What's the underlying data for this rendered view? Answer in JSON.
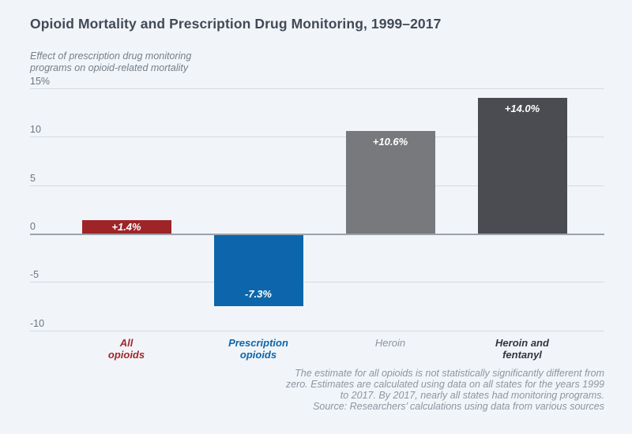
{
  "title": "Opioid Mortality and Prescription Drug Monitoring, 1999–2017",
  "subtitle": {
    "line1": "Effect of prescription drug monitoring",
    "line2": "programs on opioid-related mortality"
  },
  "chart_data": {
    "type": "bar",
    "title": "Opioid Mortality and Prescription Drug Monitoring, 1999–2017",
    "subtitle": "Effect of prescription drug monitoring programs on opioid-related mortality",
    "categories": [
      "All opioids",
      "Prescription opioids",
      "Heroin",
      "Heroin and fentanyl"
    ],
    "category_label_lines": [
      [
        "All",
        "opioids"
      ],
      [
        "Prescription",
        "opioids"
      ],
      [
        "Heroin"
      ],
      [
        "Heroin and",
        "fentanyl"
      ]
    ],
    "values": [
      1.4,
      -7.3,
      10.6,
      14.0
    ],
    "value_labels": [
      "+1.4%",
      "-7.3%",
      "+10.6%",
      "+14.0%"
    ],
    "bar_colors": [
      "#9e2428",
      "#0d66ab",
      "#77797d",
      "#4a4c51"
    ],
    "category_label_colors": [
      "#a4262c",
      "#0d66ab",
      "#8d939d",
      "#32363d"
    ],
    "category_label_bold": [
      true,
      true,
      false,
      true
    ],
    "yticks": [
      15,
      10,
      5,
      0,
      -5,
      -10
    ],
    "ytick_labels": [
      "15%",
      "10",
      "5",
      "0",
      "-5",
      "-10"
    ],
    "ylim": [
      -10,
      15
    ],
    "grid": true,
    "legend": false,
    "xlabel": "",
    "ylabel": ""
  },
  "colors": {
    "background": "#f1f5f9",
    "grid_line": "#d5dae0",
    "zero_line": "#9ba2ab",
    "title_text": "#424a56",
    "subtitle_text": "#767e89",
    "tick_text": "#6d747e",
    "note_text": "#8d95a1",
    "value_label_text": "#ffffff"
  },
  "notes": {
    "lines": [
      "The estimate for all opioids is not statistically significantly different from",
      "zero. Estimates are calculated using data on all states for the years 1999",
      "to 2017. By 2017, nearly all states had monitoring programs.",
      "Source: Researchers’ calculations using data from various sources"
    ]
  }
}
